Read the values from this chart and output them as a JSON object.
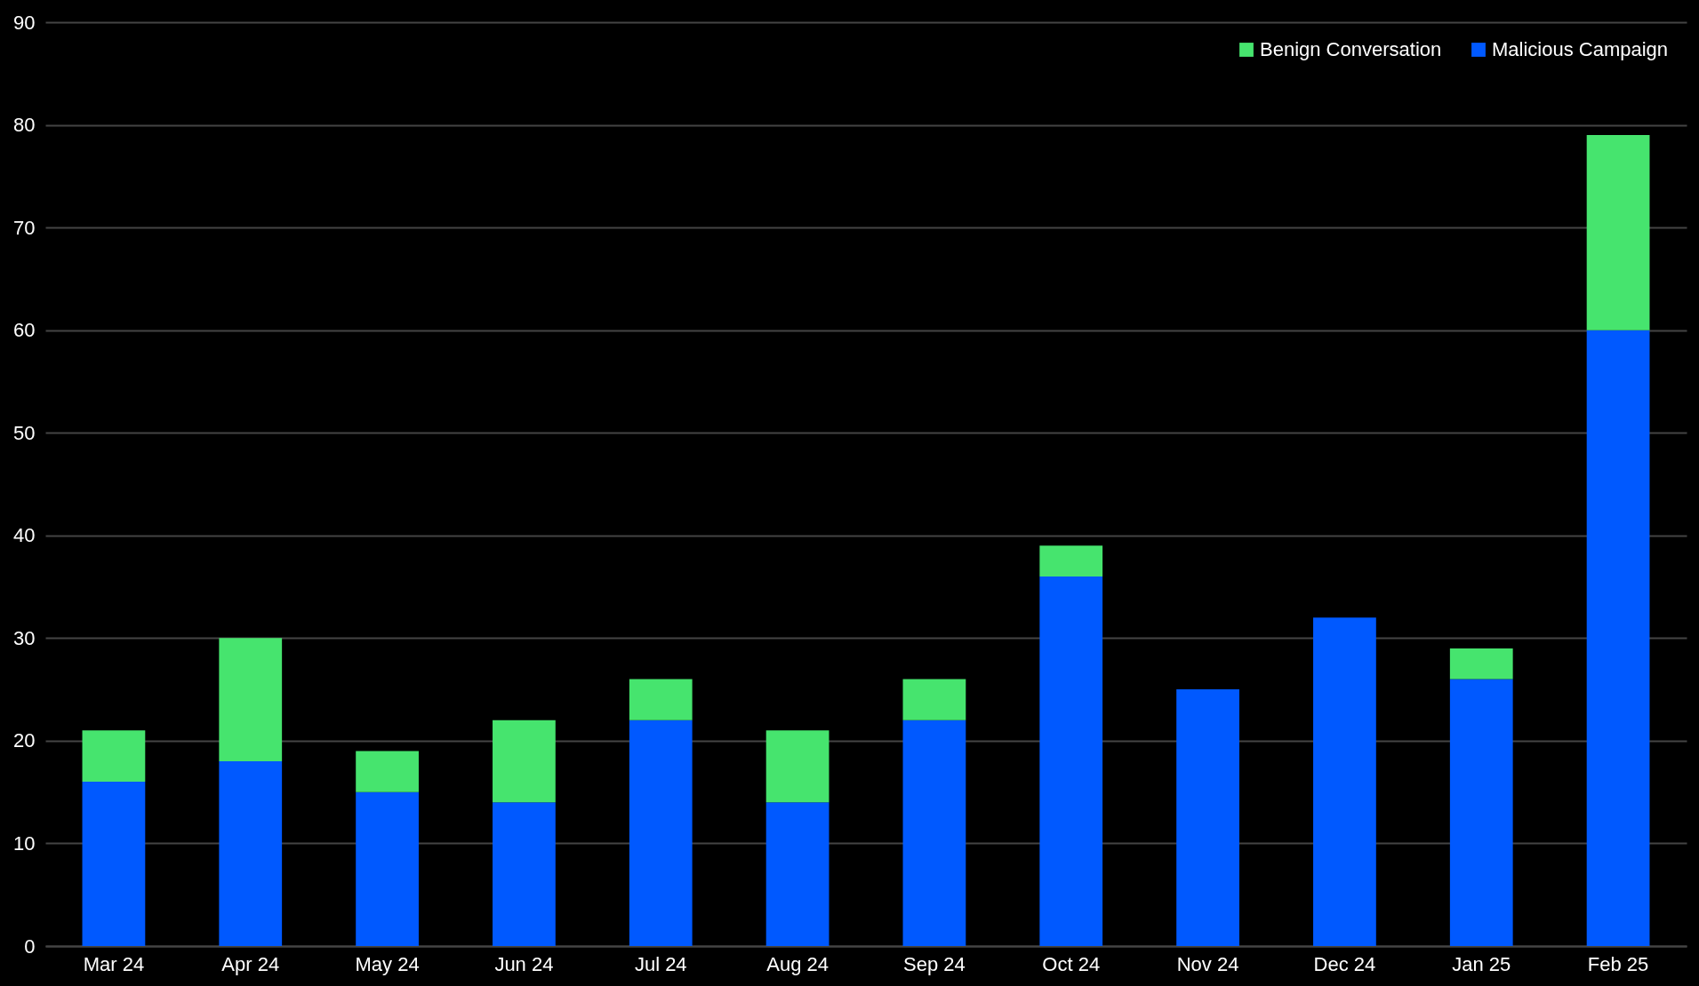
{
  "chart_data": {
    "type": "bar",
    "stacked": true,
    "categories": [
      "Mar 24",
      "Apr 24",
      "May 24",
      "Jun 24",
      "Jul 24",
      "Aug 24",
      "Sep 24",
      "Oct 24",
      "Nov 24",
      "Dec 24",
      "Jan 25",
      "Feb 25"
    ],
    "series": [
      {
        "name": "Malicious Campaign",
        "color": "#0059ff",
        "values": [
          16,
          18,
          15,
          14,
          22,
          14,
          22,
          36,
          25,
          32,
          26,
          60
        ]
      },
      {
        "name": "Benign Conversation",
        "color": "#46e46e",
        "values": [
          5,
          12,
          4,
          8,
          4,
          7,
          4,
          3,
          0,
          0,
          3,
          19
        ]
      }
    ],
    "ylim": [
      0,
      90
    ],
    "yticks": [
      0,
      10,
      20,
      30,
      40,
      50,
      60,
      70,
      80,
      90
    ],
    "grid": "y",
    "legend": "top right"
  }
}
